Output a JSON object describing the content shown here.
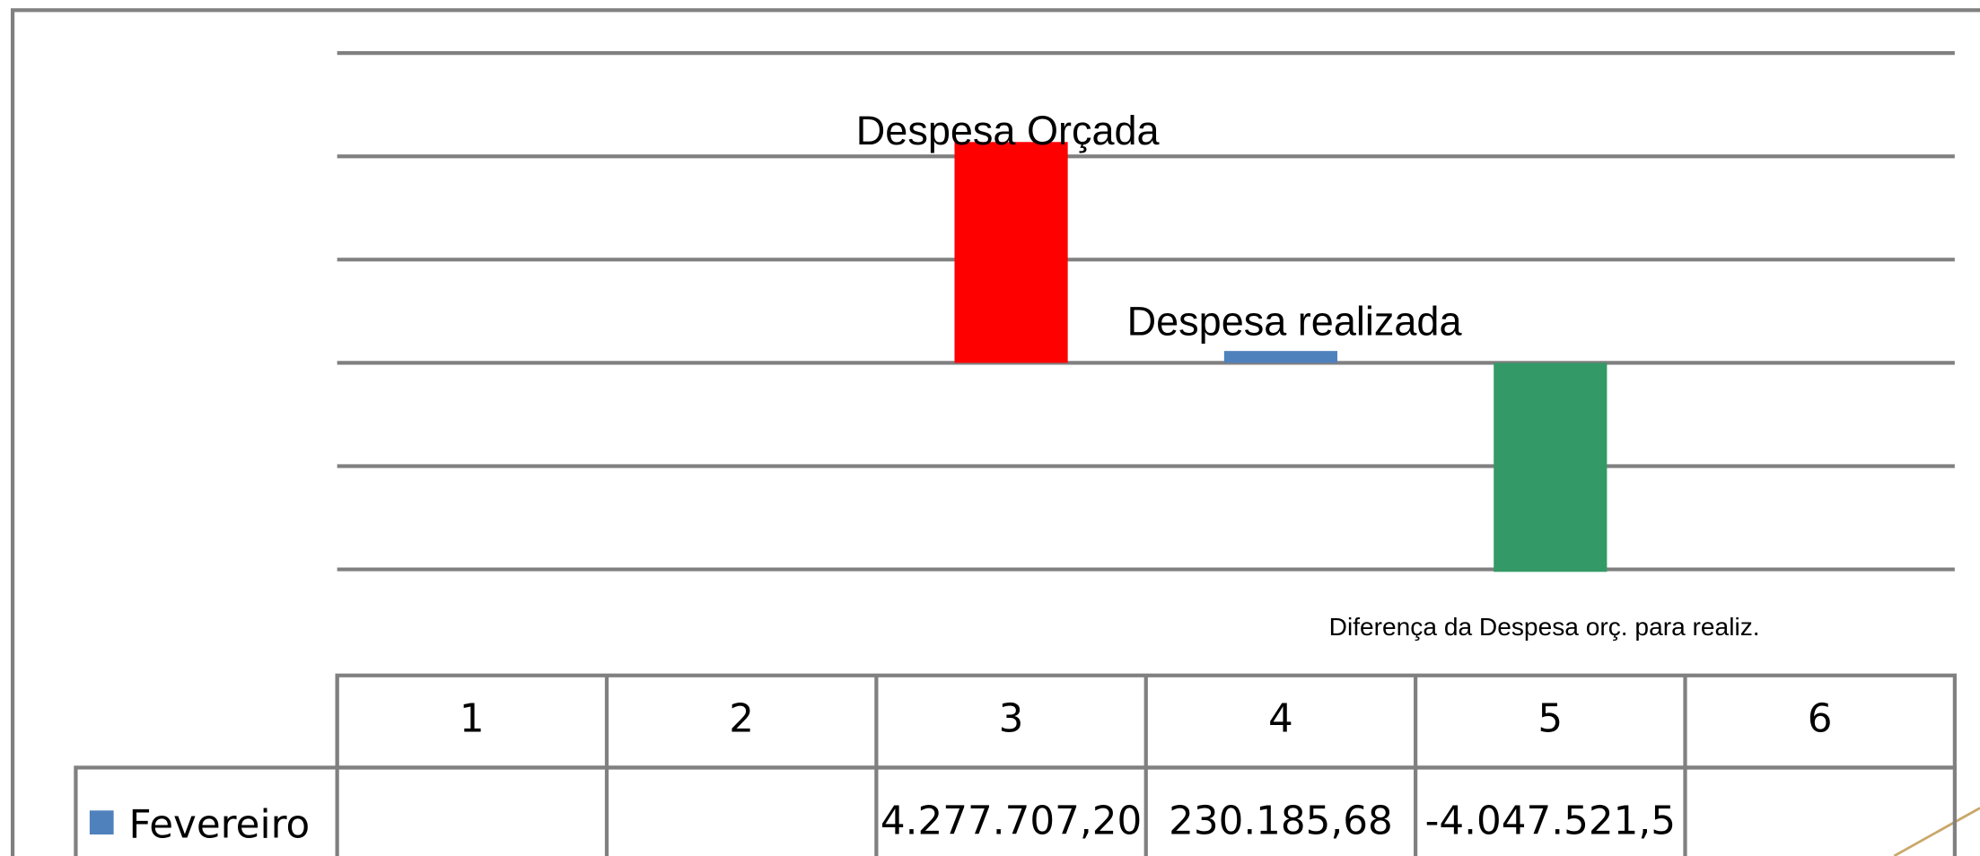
{
  "chart_data": {
    "type": "bar",
    "categories": [
      "1",
      "2",
      "3",
      "4",
      "5",
      "6"
    ],
    "series": [
      {
        "name": "Fevereiro",
        "color": "#4f81bd",
        "values": [
          null,
          null,
          4277707.2,
          230185.68,
          -4047521.5,
          null
        ],
        "value_labels": [
          null,
          null,
          "4.277.707,20",
          "230.185,68",
          "-4.047.521,5",
          null
        ],
        "point_colors": [
          null,
          null,
          "#ff0000",
          "#4f81bd",
          "#339966",
          null
        ]
      }
    ],
    "annotations": [
      "Despesa Orçada",
      "Despesa realizada",
      "Diferença da Despesa orç. para realiz."
    ],
    "ylim": [
      -4000000,
      6000000
    ],
    "yticks": [
      -4000000,
      -2000000,
      0,
      2000000,
      4000000,
      6000000
    ],
    "grid": true
  }
}
